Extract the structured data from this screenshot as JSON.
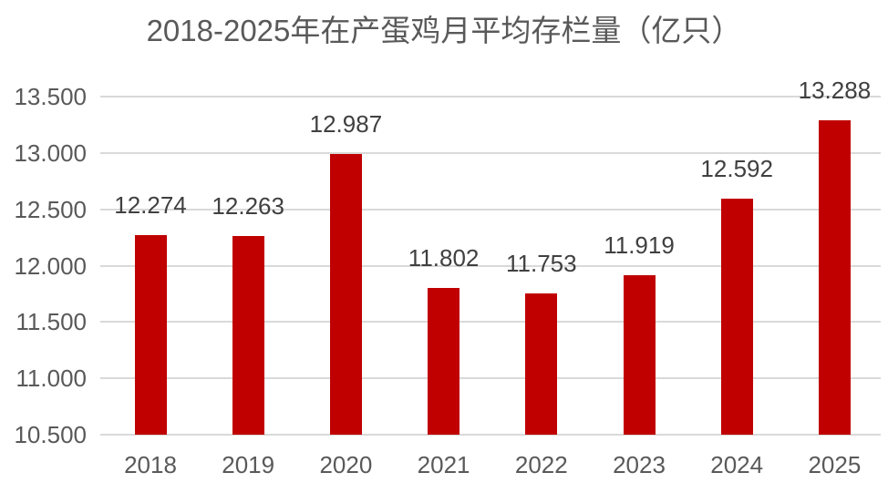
{
  "chart_data": {
    "type": "bar",
    "title": "2018-2025年在产蛋鸡月平均存栏量（亿只）",
    "categories": [
      "2018",
      "2019",
      "2020",
      "2021",
      "2022",
      "2023",
      "2024",
      "2025"
    ],
    "values": [
      12.274,
      12.263,
      12.987,
      11.802,
      11.753,
      11.919,
      12.592,
      13.288
    ],
    "data_labels": [
      "12.274",
      "12.263",
      "12.987",
      "11.802",
      "11.753",
      "11.919",
      "12.592",
      "13.288"
    ],
    "xlabel": "",
    "ylabel": "",
    "ylim": [
      10.5,
      13.5
    ],
    "ytick_values": [
      10.5,
      11.0,
      11.5,
      12.0,
      12.5,
      13.0,
      13.5
    ],
    "ytick_labels": [
      "10.500",
      "11.000",
      "11.500",
      "12.000",
      "12.500",
      "13.000",
      "13.500"
    ],
    "grid": true,
    "legend_position": "none",
    "colors": {
      "bar": "#c00000",
      "gridline": "#d9d9d9",
      "axis_label": "#595959",
      "data_label": "#404040",
      "title": "#595959",
      "background": "#ffffff"
    }
  }
}
